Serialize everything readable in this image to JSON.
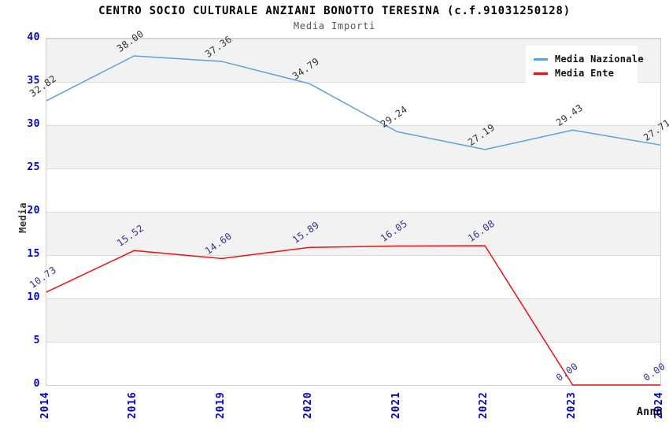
{
  "page": {
    "background_color": "#FFFFFF"
  },
  "chart_data": {
    "type": "line",
    "title": "CENTRO SOCIO CULTURALE ANZIANI BONOTTO TERESINA (c.f.91031250128)",
    "subtitle": "Media Importi",
    "xlabel": "Anno",
    "ylabel": "Media",
    "categories": [
      "2014",
      "2016",
      "2019",
      "2020",
      "2021",
      "2022",
      "2023",
      "2024"
    ],
    "series": [
      {
        "name": "Media Nazionale",
        "color": "#5E9FE0",
        "label_color": "#333333",
        "values": [
          32.82,
          38.0,
          37.36,
          34.79,
          29.24,
          27.19,
          29.43,
          27.71
        ]
      },
      {
        "name": "Media Ente",
        "color": "#EE1111",
        "label_color": "#333399",
        "values": [
          10.73,
          15.52,
          14.6,
          15.89,
          16.05,
          16.08,
          0.0,
          0.0
        ]
      }
    ],
    "ylim": [
      0,
      40
    ],
    "yticks": [
      0,
      5,
      10,
      15,
      20,
      25,
      30,
      35,
      40
    ],
    "grid": true,
    "legend_position": "top-right",
    "value_label_decimals": 2,
    "styles": {
      "tick_label_color": "#0000CC",
      "band_color": "#F2F2F2",
      "band_alt_color": "#FFFFFF",
      "grid_color": "#DCDCDC",
      "plot_border_color": "#D0D0D0",
      "title_color": "#000000",
      "subtitle_color": "#555555",
      "axis_title_color": "#333333"
    }
  }
}
